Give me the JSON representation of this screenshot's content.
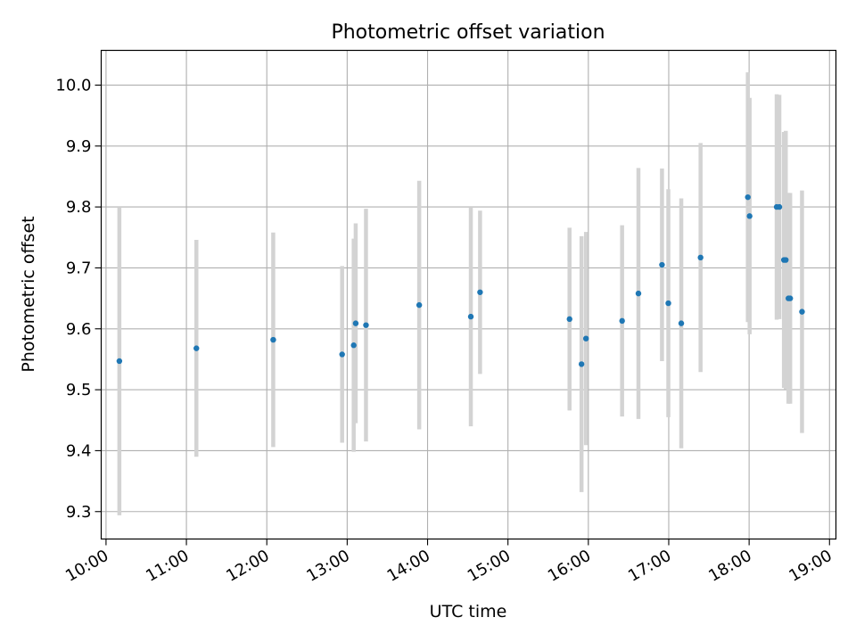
{
  "chart_data": {
    "type": "scatter",
    "title": "Photometric offset variation",
    "xlabel": "UTC time",
    "ylabel": "Photometric offset",
    "xlim_hours": [
      9.94,
      19.08
    ],
    "ylim": [
      9.255,
      10.057
    ],
    "x_ticks": [
      {
        "value": 10,
        "label": "10:00"
      },
      {
        "value": 11,
        "label": "11:00"
      },
      {
        "value": 12,
        "label": "12:00"
      },
      {
        "value": 13,
        "label": "13:00"
      },
      {
        "value": 14,
        "label": "14:00"
      },
      {
        "value": 15,
        "label": "15:00"
      },
      {
        "value": 16,
        "label": "16:00"
      },
      {
        "value": 17,
        "label": "17:00"
      },
      {
        "value": 18,
        "label": "18:00"
      },
      {
        "value": 19,
        "label": "19:00"
      }
    ],
    "y_ticks": [
      {
        "value": 9.3,
        "label": "9.3"
      },
      {
        "value": 9.4,
        "label": "9.4"
      },
      {
        "value": 9.5,
        "label": "9.5"
      },
      {
        "value": 9.6,
        "label": "9.6"
      },
      {
        "value": 9.7,
        "label": "9.7"
      },
      {
        "value": 9.8,
        "label": "9.8"
      },
      {
        "value": 9.9,
        "label": "9.9"
      },
      {
        "value": 10.0,
        "label": "10.0"
      }
    ],
    "grid": true,
    "marker_color": "#1f77b4",
    "errorbar_color": "#d3d3d3",
    "points": [
      {
        "x": 10.166,
        "y": 9.547,
        "err": 0.253
      },
      {
        "x": 11.124,
        "y": 9.568,
        "err": 0.178
      },
      {
        "x": 12.08,
        "y": 9.582,
        "err": 0.176
      },
      {
        "x": 12.937,
        "y": 9.558,
        "err": 0.145
      },
      {
        "x": 13.081,
        "y": 9.573,
        "err": 0.175
      },
      {
        "x": 13.106,
        "y": 9.609,
        "err": 0.164
      },
      {
        "x": 13.234,
        "y": 9.606,
        "err": 0.191
      },
      {
        "x": 13.896,
        "y": 9.639,
        "err": 0.204
      },
      {
        "x": 14.538,
        "y": 9.62,
        "err": 0.18
      },
      {
        "x": 14.653,
        "y": 9.66,
        "err": 0.134
      },
      {
        "x": 15.766,
        "y": 9.616,
        "err": 0.15
      },
      {
        "x": 15.915,
        "y": 9.542,
        "err": 0.21
      },
      {
        "x": 15.971,
        "y": 9.584,
        "err": 0.175
      },
      {
        "x": 16.42,
        "y": 9.613,
        "err": 0.157
      },
      {
        "x": 16.623,
        "y": 9.658,
        "err": 0.206
      },
      {
        "x": 16.916,
        "y": 9.705,
        "err": 0.158
      },
      {
        "x": 16.995,
        "y": 9.642,
        "err": 0.187
      },
      {
        "x": 17.156,
        "y": 9.609,
        "err": 0.205
      },
      {
        "x": 17.396,
        "y": 9.717,
        "err": 0.188
      },
      {
        "x": 17.984,
        "y": 9.816,
        "err": 0.205
      },
      {
        "x": 18.006,
        "y": 9.785,
        "err": 0.194
      },
      {
        "x": 18.343,
        "y": 9.8,
        "err": 0.185
      },
      {
        "x": 18.376,
        "y": 9.8,
        "err": 0.184
      },
      {
        "x": 18.433,
        "y": 9.713,
        "err": 0.21
      },
      {
        "x": 18.456,
        "y": 9.713,
        "err": 0.212
      },
      {
        "x": 18.489,
        "y": 9.65,
        "err": 0.173
      },
      {
        "x": 18.511,
        "y": 9.65,
        "err": 0.173
      },
      {
        "x": 18.658,
        "y": 9.628,
        "err": 0.199
      }
    ]
  }
}
